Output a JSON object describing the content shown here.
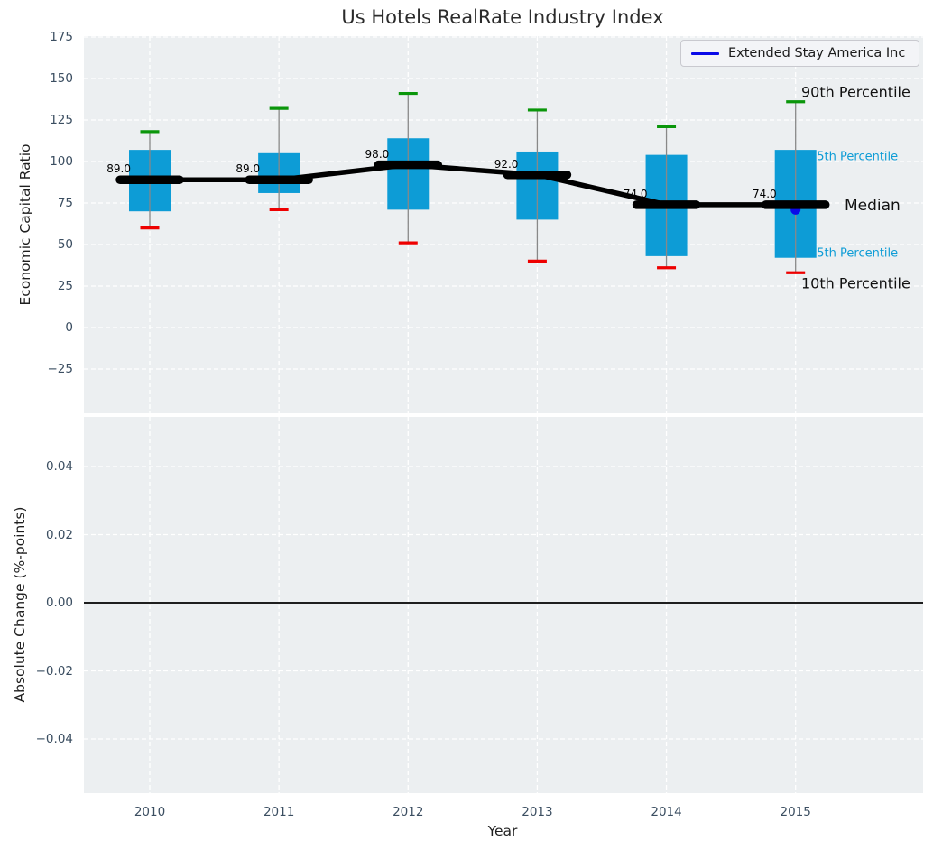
{
  "figure": {
    "title": "Us Hotels RealRate Industry Index",
    "background": "#ffffff",
    "axes_background": "#eceff1",
    "grid_color": "#ffffff",
    "tick_color": "#3b4e61"
  },
  "legend": {
    "label": "Extended Stay America Inc",
    "line_color": "#0a0ae8",
    "position": "top-right"
  },
  "chart_data": {
    "type": "boxplot-timeseries",
    "title": "Us Hotels RealRate Industry Index",
    "xlabel": "Year",
    "categories": [
      "2010",
      "2011",
      "2012",
      "2013",
      "2014",
      "2015"
    ],
    "grid": "white dashed, on",
    "legend_position": "upper right",
    "panels": [
      {
        "name": "economic-capital-ratio",
        "ylabel": "Economic Capital Ratio",
        "ytick_labels": [
          "175",
          "150",
          "125",
          "100",
          "75",
          "50",
          "25",
          "0",
          "−25"
        ],
        "yticks": [
          175,
          150,
          125,
          100,
          75,
          50,
          25,
          0,
          -25
        ],
        "ylim": [
          -51.6,
          175.5
        ],
        "series": [
          {
            "name": "90th Percentile",
            "role": "p90",
            "color": "#0a960a",
            "values": [
              118,
              132,
              141,
              131,
              121,
              136
            ]
          },
          {
            "name": "75th Percentile",
            "role": "p75",
            "color": "#0d9cd6",
            "values": [
              107,
              105,
              114,
              106,
              104,
              107
            ]
          },
          {
            "name": "Median",
            "role": "median",
            "color": "#000000",
            "values": [
              89,
              89,
              98,
              92,
              74,
              74
            ]
          },
          {
            "name": "25th Percentile",
            "role": "p25",
            "color": "#0d9cd6",
            "values": [
              70,
              81,
              71,
              65,
              43,
              42
            ]
          },
          {
            "name": "10th Percentile",
            "role": "p10",
            "color": "#ee0000",
            "values": [
              60,
              71,
              51,
              40,
              36,
              33
            ]
          }
        ],
        "median_annotations": [
          "89.0",
          "89.0",
          "98.0",
          "92.0",
          "74.0",
          "74.0"
        ],
        "company_point": {
          "label": "Extended Stay America Inc",
          "category": "2015",
          "value": 71,
          "color": "#0a0ae8"
        },
        "side_labels": [
          {
            "text": "90th Percentile",
            "anchor": "p90",
            "color": "#111111",
            "size": 16
          },
          {
            "text": "75th Percentile",
            "anchor": "p75",
            "color": "#0d9cd6",
            "size": 13
          },
          {
            "text": "Median",
            "anchor": "median",
            "color": "#111111",
            "size": 17
          },
          {
            "text": "25th Percentile",
            "anchor": "p25",
            "color": "#0d9cd6",
            "size": 13
          },
          {
            "text": "10th Percentile",
            "anchor": "p10",
            "color": "#111111",
            "size": 16
          }
        ],
        "box_color": "#0d9cd6",
        "whisker_color": "#888888"
      },
      {
        "name": "absolute-change",
        "ylabel": "Absolute Change (%-points)",
        "ytick_labels": [
          "0.04",
          "0.02",
          "0.00",
          "−0.02",
          "−0.04"
        ],
        "yticks": [
          0.04,
          0.02,
          0.0,
          -0.02,
          -0.04
        ],
        "ylim": [
          -0.056,
          0.0545
        ],
        "zero_line_color": "#000000",
        "series": []
      }
    ]
  }
}
